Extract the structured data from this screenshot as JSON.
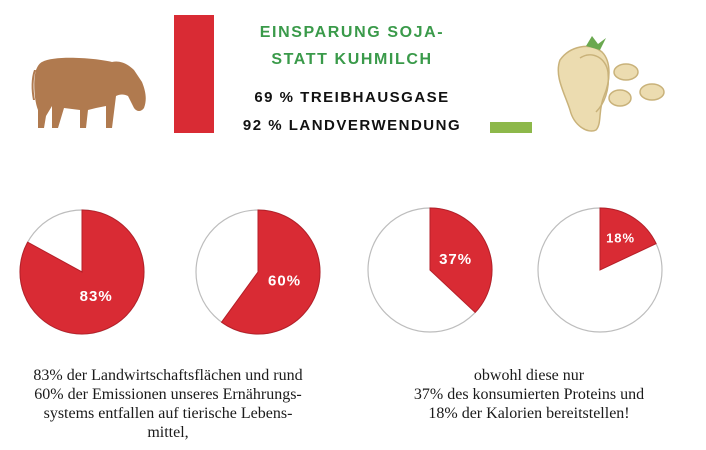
{
  "header": {
    "title_line1": "EINSPARUNG SOJA-",
    "title_line2": "STATT KUHMILCH",
    "stat_greenhouse": "69 % TREIBHAUSGASE",
    "stat_land": "92 % LANDVERWENDUNG",
    "cow_icon": "cow-icon",
    "soy_icon": "soybean-icon"
  },
  "colors": {
    "red": "#d92b34",
    "green_bar": "#8db84a",
    "title_green": "#3a9a4a",
    "cow_brown": "#b07a4f",
    "soy_cream": "#ecdcb0"
  },
  "chart_data": {
    "type": "pie",
    "charts": [
      {
        "value": 83,
        "label": "83%"
      },
      {
        "value": 60,
        "label": "60%"
      },
      {
        "value": 37,
        "label": "37%"
      },
      {
        "value": 18,
        "label": "18%"
      }
    ]
  },
  "captions": {
    "left": [
      "83% der Landwirtschaftsflächen und rund",
      "60% der Emissionen unseres Ernährungs-",
      "systems entfallen auf tierische Lebens-",
      "mittel,"
    ],
    "right": [
      "obwohl diese nur",
      "37% des konsumierten Proteins und",
      "18% der Kalorien bereitstellen!"
    ]
  }
}
